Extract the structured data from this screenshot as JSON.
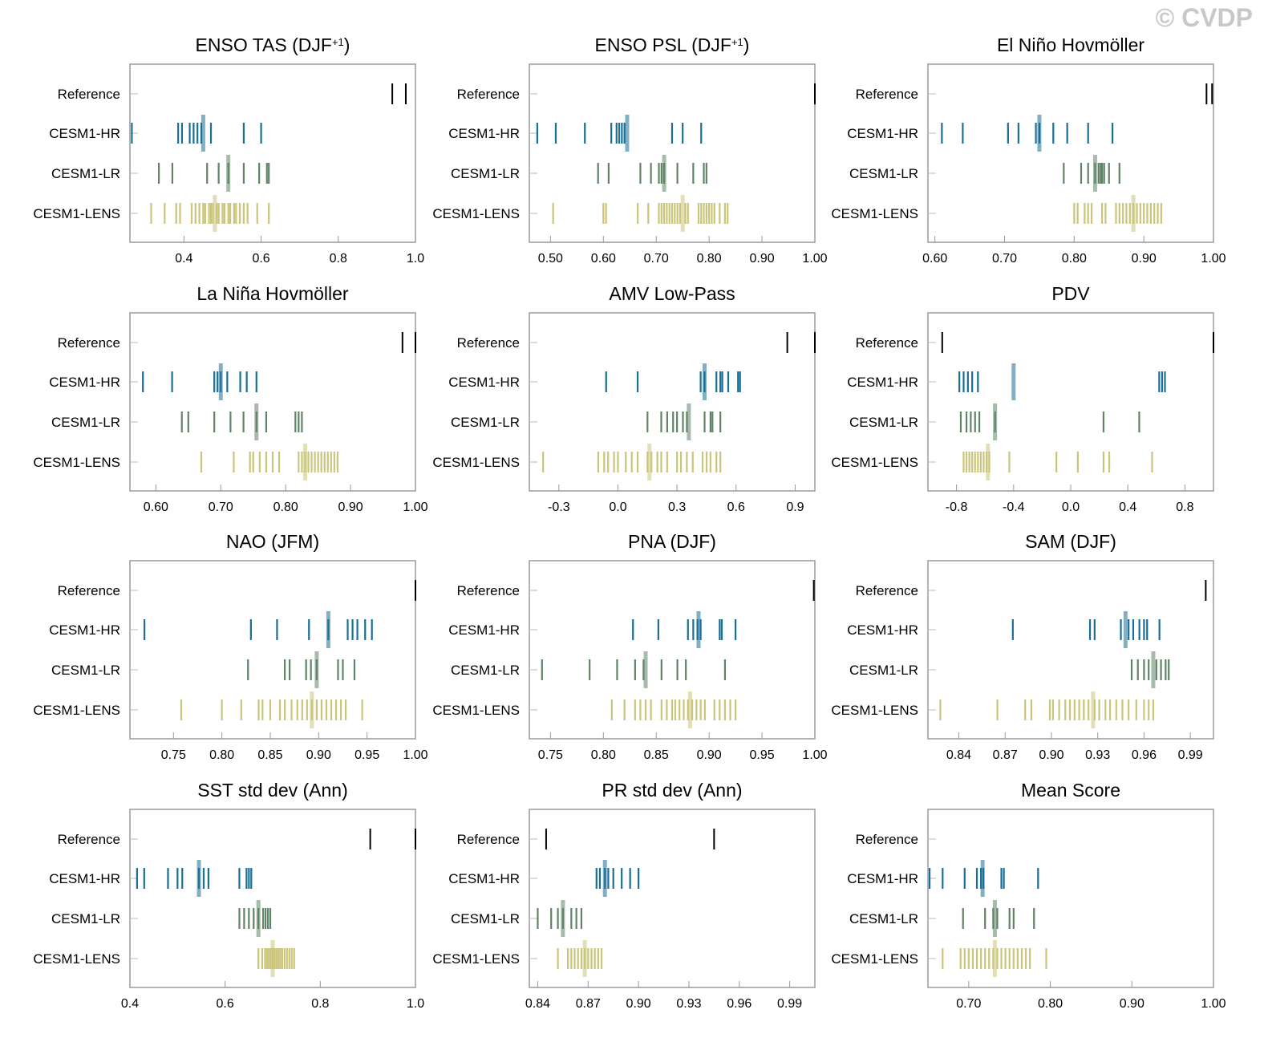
{
  "watermark": "© CVDP",
  "rows": [
    "Reference",
    "CESM1-HR",
    "CESM1-LR",
    "CESM1-LENS"
  ],
  "colors": {
    "Reference": "#000000",
    "CESM1-HR": "#1a6f96",
    "CESM1-LR": "#5f8466",
    "CESM1-LENS": "#cbc57a"
  },
  "chart_data": [
    {
      "type": "strip",
      "title": "ENSO TAS (DJF",
      "title_sup": "+1",
      "title_tail": ")",
      "xlim": [
        0.26,
        1.0
      ],
      "ticks": [
        0.4,
        0.6,
        0.8,
        1.0
      ],
      "tick_labels": [
        "0.4",
        "0.6",
        "0.8",
        "1.0"
      ],
      "series": [
        {
          "name": "Reference",
          "values": [
            0.94,
            0.975
          ],
          "mean": null
        },
        {
          "name": "CESM1-HR",
          "values": [
            0.265,
            0.385,
            0.395,
            0.415,
            0.425,
            0.435,
            0.445,
            0.47,
            0.555,
            0.6
          ],
          "mean": 0.45
        },
        {
          "name": "CESM1-LR",
          "values": [
            0.335,
            0.37,
            0.46,
            0.49,
            0.515,
            0.555,
            0.595,
            0.615,
            0.62
          ],
          "mean": 0.515
        },
        {
          "name": "CESM1-LENS",
          "values": [
            0.315,
            0.35,
            0.38,
            0.39,
            0.42,
            0.43,
            0.44,
            0.45,
            0.455,
            0.465,
            0.47,
            0.475,
            0.485,
            0.49,
            0.5,
            0.505,
            0.515,
            0.52,
            0.53,
            0.535,
            0.545,
            0.555,
            0.565,
            0.59,
            0.62
          ],
          "mean": 0.48
        }
      ]
    },
    {
      "type": "strip",
      "title": "ENSO PSL (DJF",
      "title_sup": "+1",
      "title_tail": ")",
      "xlim": [
        0.46,
        1.0
      ],
      "ticks": [
        0.5,
        0.6,
        0.7,
        0.8,
        0.9,
        1.0
      ],
      "tick_labels": [
        "0.50",
        "0.60",
        "0.70",
        "0.80",
        "0.90",
        "1.00"
      ],
      "series": [
        {
          "name": "Reference",
          "values": [
            1.0
          ],
          "mean": null
        },
        {
          "name": "CESM1-HR",
          "values": [
            0.475,
            0.51,
            0.565,
            0.615,
            0.625,
            0.63,
            0.635,
            0.64,
            0.73,
            0.75,
            0.785
          ],
          "mean": 0.645
        },
        {
          "name": "CESM1-LR",
          "values": [
            0.59,
            0.61,
            0.67,
            0.69,
            0.705,
            0.71,
            0.715,
            0.74,
            0.77,
            0.79,
            0.795
          ],
          "mean": 0.715
        },
        {
          "name": "CESM1-LENS",
          "values": [
            0.505,
            0.6,
            0.605,
            0.665,
            0.685,
            0.705,
            0.71,
            0.715,
            0.72,
            0.725,
            0.73,
            0.735,
            0.74,
            0.745,
            0.755,
            0.76,
            0.78,
            0.785,
            0.79,
            0.795,
            0.8,
            0.805,
            0.81,
            0.82,
            0.83,
            0.835
          ],
          "mean": 0.75
        }
      ]
    },
    {
      "type": "strip",
      "title": "El Niño Hovmöller",
      "title_sup": "",
      "title_tail": "",
      "xlim": [
        0.59,
        1.0
      ],
      "ticks": [
        0.6,
        0.7,
        0.8,
        0.9,
        1.0
      ],
      "tick_labels": [
        "0.60",
        "0.70",
        "0.80",
        "0.90",
        "1.00"
      ],
      "series": [
        {
          "name": "Reference",
          "values": [
            0.99,
            0.998
          ],
          "mean": null
        },
        {
          "name": "CESM1-HR",
          "values": [
            0.61,
            0.64,
            0.705,
            0.72,
            0.745,
            0.75,
            0.77,
            0.79,
            0.82,
            0.855
          ],
          "mean": 0.75
        },
        {
          "name": "CESM1-LR",
          "values": [
            0.785,
            0.81,
            0.82,
            0.83,
            0.835,
            0.838,
            0.84,
            0.843,
            0.85,
            0.865
          ],
          "mean": 0.83
        },
        {
          "name": "CESM1-LENS",
          "values": [
            0.8,
            0.805,
            0.815,
            0.82,
            0.825,
            0.84,
            0.845,
            0.86,
            0.865,
            0.87,
            0.875,
            0.88,
            0.885,
            0.89,
            0.895,
            0.9,
            0.905,
            0.91,
            0.915,
            0.92,
            0.925
          ],
          "mean": 0.885
        }
      ]
    },
    {
      "type": "strip",
      "title": "La Niña Hovmöller",
      "title_sup": "",
      "title_tail": "",
      "xlim": [
        0.56,
        1.0
      ],
      "ticks": [
        0.6,
        0.7,
        0.8,
        0.9,
        1.0
      ],
      "tick_labels": [
        "0.60",
        "0.70",
        "0.80",
        "0.90",
        "1.00"
      ],
      "series": [
        {
          "name": "Reference",
          "values": [
            0.98,
            1.0
          ],
          "mean": null
        },
        {
          "name": "CESM1-HR",
          "values": [
            0.58,
            0.625,
            0.69,
            0.695,
            0.7,
            0.71,
            0.73,
            0.74,
            0.755
          ],
          "mean": 0.7
        },
        {
          "name": "CESM1-LR",
          "values": [
            0.64,
            0.65,
            0.69,
            0.715,
            0.735,
            0.755,
            0.77,
            0.815,
            0.82,
            0.825
          ],
          "mean": 0.755
        },
        {
          "name": "CESM1-LENS",
          "values": [
            0.67,
            0.72,
            0.745,
            0.75,
            0.76,
            0.77,
            0.78,
            0.79,
            0.82,
            0.825,
            0.83,
            0.835,
            0.84,
            0.845,
            0.85,
            0.855,
            0.86,
            0.865,
            0.87,
            0.875,
            0.88
          ],
          "mean": 0.83
        }
      ]
    },
    {
      "type": "strip",
      "title": "AMV Low-Pass",
      "title_sup": "",
      "title_tail": "",
      "xlim": [
        -0.45,
        1.0
      ],
      "ticks": [
        -0.3,
        0.0,
        0.3,
        0.6,
        0.9
      ],
      "tick_labels": [
        "-0.3",
        "0.0",
        "0.3",
        "0.6",
        "0.9"
      ],
      "series": [
        {
          "name": "Reference",
          "values": [
            0.86,
            1.0
          ],
          "mean": null
        },
        {
          "name": "CESM1-HR",
          "values": [
            -0.06,
            0.1,
            0.42,
            0.44,
            0.5,
            0.52,
            0.53,
            0.56,
            0.61,
            0.62
          ],
          "mean": 0.44
        },
        {
          "name": "CESM1-LR",
          "values": [
            0.15,
            0.22,
            0.25,
            0.28,
            0.3,
            0.33,
            0.35,
            0.44,
            0.47,
            0.48,
            0.52
          ],
          "mean": 0.36
        },
        {
          "name": "CESM1-LENS",
          "values": [
            -0.38,
            -0.1,
            -0.07,
            -0.05,
            -0.02,
            0.0,
            0.04,
            0.07,
            0.1,
            0.15,
            0.17,
            0.2,
            0.22,
            0.25,
            0.3,
            0.32,
            0.35,
            0.38,
            0.43,
            0.45,
            0.47,
            0.5,
            0.52
          ],
          "mean": 0.16
        }
      ]
    },
    {
      "type": "strip",
      "title": "PDV",
      "title_sup": "",
      "title_tail": "",
      "xlim": [
        -1.0,
        1.0
      ],
      "ticks": [
        -0.8,
        -0.4,
        0.0,
        0.4,
        0.8
      ],
      "tick_labels": [
        "-0.8",
        "-0.4",
        "0.0",
        "0.4",
        "0.8"
      ],
      "series": [
        {
          "name": "Reference",
          "values": [
            -0.9,
            1.0
          ],
          "mean": null
        },
        {
          "name": "CESM1-HR",
          "values": [
            -0.78,
            -0.75,
            -0.72,
            -0.69,
            -0.65,
            0.62,
            0.64,
            0.66
          ],
          "mean": -0.4
        },
        {
          "name": "CESM1-LR",
          "values": [
            -0.77,
            -0.73,
            -0.7,
            -0.67,
            -0.64,
            -0.53,
            0.23,
            0.48
          ],
          "mean": -0.53
        },
        {
          "name": "CESM1-LENS",
          "values": [
            -0.75,
            -0.73,
            -0.71,
            -0.69,
            -0.67,
            -0.65,
            -0.63,
            -0.61,
            -0.59,
            -0.57,
            -0.43,
            -0.1,
            0.05,
            0.23,
            0.27,
            0.57
          ],
          "mean": -0.58
        }
      ]
    },
    {
      "type": "strip",
      "title": "NAO (JFM)",
      "title_sup": "",
      "title_tail": "",
      "xlim": [
        0.705,
        1.0
      ],
      "ticks": [
        0.75,
        0.8,
        0.85,
        0.9,
        0.95,
        1.0
      ],
      "tick_labels": [
        "0.75",
        "0.80",
        "0.85",
        "0.90",
        "0.95",
        "1.00"
      ],
      "series": [
        {
          "name": "Reference",
          "values": [
            1.0
          ],
          "mean": null
        },
        {
          "name": "CESM1-HR",
          "values": [
            0.72,
            0.83,
            0.857,
            0.89,
            0.91,
            0.93,
            0.935,
            0.94,
            0.948,
            0.955
          ],
          "mean": 0.91
        },
        {
          "name": "CESM1-LR",
          "values": [
            0.827,
            0.865,
            0.87,
            0.887,
            0.892,
            0.898,
            0.92,
            0.925,
            0.937
          ],
          "mean": 0.898
        },
        {
          "name": "CESM1-LENS",
          "values": [
            0.758,
            0.8,
            0.82,
            0.838,
            0.842,
            0.85,
            0.86,
            0.865,
            0.872,
            0.878,
            0.883,
            0.888,
            0.893,
            0.898,
            0.903,
            0.908,
            0.913,
            0.918,
            0.923,
            0.928,
            0.945
          ],
          "mean": 0.893
        }
      ]
    },
    {
      "type": "strip",
      "title": "PNA (DJF)",
      "title_sup": "",
      "title_tail": "",
      "xlim": [
        0.73,
        1.0
      ],
      "ticks": [
        0.75,
        0.8,
        0.85,
        0.9,
        0.95,
        1.0
      ],
      "tick_labels": [
        "0.75",
        "0.80",
        "0.85",
        "0.90",
        "0.95",
        "1.00"
      ],
      "series": [
        {
          "name": "Reference",
          "values": [
            0.999
          ],
          "mean": null
        },
        {
          "name": "CESM1-HR",
          "values": [
            0.828,
            0.852,
            0.88,
            0.885,
            0.889,
            0.892,
            0.91,
            0.912,
            0.925
          ],
          "mean": 0.89
        },
        {
          "name": "CESM1-LR",
          "values": [
            0.742,
            0.787,
            0.813,
            0.83,
            0.838,
            0.855,
            0.87,
            0.878,
            0.915
          ],
          "mean": 0.84
        },
        {
          "name": "CESM1-LENS",
          "values": [
            0.808,
            0.82,
            0.83,
            0.835,
            0.84,
            0.845,
            0.855,
            0.86,
            0.865,
            0.868,
            0.872,
            0.876,
            0.88,
            0.884,
            0.888,
            0.892,
            0.896,
            0.905,
            0.91,
            0.915,
            0.92,
            0.925
          ],
          "mean": 0.882
        }
      ]
    },
    {
      "type": "strip",
      "title": "SAM (DJF)",
      "title_sup": "",
      "title_tail": "",
      "xlim": [
        0.82,
        1.005
      ],
      "ticks": [
        0.84,
        0.87,
        0.9,
        0.93,
        0.96,
        0.99
      ],
      "tick_labels": [
        "0.84",
        "0.87",
        "0.90",
        "0.93",
        "0.96",
        "0.99"
      ],
      "series": [
        {
          "name": "Reference",
          "values": [
            1.0
          ],
          "mean": null
        },
        {
          "name": "CESM1-HR",
          "values": [
            0.875,
            0.925,
            0.928,
            0.945,
            0.95,
            0.953,
            0.957,
            0.96,
            0.962,
            0.97
          ],
          "mean": 0.948
        },
        {
          "name": "CESM1-LR",
          "values": [
            0.952,
            0.956,
            0.96,
            0.963,
            0.968,
            0.971,
            0.974,
            0.976
          ],
          "mean": 0.966
        },
        {
          "name": "CESM1-LENS",
          "values": [
            0.828,
            0.865,
            0.883,
            0.887,
            0.899,
            0.901,
            0.905,
            0.909,
            0.912,
            0.915,
            0.918,
            0.921,
            0.924,
            0.928,
            0.931,
            0.935,
            0.938,
            0.942,
            0.946,
            0.95,
            0.955,
            0.96,
            0.963,
            0.966
          ],
          "mean": 0.927
        }
      ]
    },
    {
      "type": "strip",
      "title": "SST std dev (Ann)",
      "title_sup": "",
      "title_tail": "",
      "xlim": [
        0.4,
        1.0
      ],
      "ticks": [
        0.4,
        0.6,
        0.8,
        1.0
      ],
      "tick_labels": [
        "0.4",
        "0.6",
        "0.8",
        "1.0"
      ],
      "series": [
        {
          "name": "Reference",
          "values": [
            0.905,
            1.0
          ],
          "mean": null
        },
        {
          "name": "CESM1-HR",
          "values": [
            0.415,
            0.43,
            0.48,
            0.5,
            0.51,
            0.545,
            0.555,
            0.565,
            0.63,
            0.645,
            0.65,
            0.655
          ],
          "mean": 0.545
        },
        {
          "name": "CESM1-LR",
          "values": [
            0.63,
            0.64,
            0.65,
            0.66,
            0.67,
            0.68,
            0.685,
            0.69,
            0.695
          ],
          "mean": 0.67
        },
        {
          "name": "CESM1-LENS",
          "values": [
            0.67,
            0.678,
            0.684,
            0.688,
            0.692,
            0.696,
            0.7,
            0.704,
            0.708,
            0.712,
            0.716,
            0.72,
            0.725,
            0.73,
            0.735,
            0.74,
            0.745
          ],
          "mean": 0.7
        }
      ]
    },
    {
      "type": "strip",
      "title": "PR std dev (Ann)",
      "title_sup": "",
      "title_tail": "",
      "xlim": [
        0.835,
        1.005
      ],
      "ticks": [
        0.84,
        0.87,
        0.9,
        0.93,
        0.96,
        0.99
      ],
      "tick_labels": [
        "0.84",
        "0.87",
        "0.90",
        "0.93",
        "0.96",
        "0.99"
      ],
      "series": [
        {
          "name": "Reference",
          "values": [
            0.845,
            0.945
          ],
          "mean": null
        },
        {
          "name": "CESM1-HR",
          "values": [
            0.875,
            0.877,
            0.88,
            0.882,
            0.885,
            0.89,
            0.895,
            0.9
          ],
          "mean": 0.88
        },
        {
          "name": "CESM1-LR",
          "values": [
            0.84,
            0.848,
            0.852,
            0.855,
            0.86,
            0.863,
            0.866
          ],
          "mean": 0.855
        },
        {
          "name": "CESM1-LENS",
          "values": [
            0.852,
            0.858,
            0.86,
            0.862,
            0.864,
            0.866,
            0.868,
            0.87,
            0.872,
            0.874,
            0.876,
            0.878
          ],
          "mean": 0.868
        }
      ]
    },
    {
      "type": "strip",
      "title": "Mean Score",
      "title_sup": "",
      "title_tail": "",
      "xlim": [
        0.65,
        1.0
      ],
      "ticks": [
        0.7,
        0.8,
        0.9,
        1.0
      ],
      "tick_labels": [
        "0.70",
        "0.80",
        "0.90",
        "1.00"
      ],
      "series": [
        {
          "name": "Reference",
          "values": [],
          "mean": null
        },
        {
          "name": "CESM1-HR",
          "values": [
            0.652,
            0.668,
            0.695,
            0.71,
            0.715,
            0.718,
            0.74,
            0.743,
            0.785
          ],
          "mean": 0.717
        },
        {
          "name": "CESM1-LR",
          "values": [
            0.693,
            0.72,
            0.73,
            0.735,
            0.75,
            0.755,
            0.78
          ],
          "mean": 0.732
        },
        {
          "name": "CESM1-LENS",
          "values": [
            0.668,
            0.69,
            0.695,
            0.7,
            0.705,
            0.71,
            0.715,
            0.72,
            0.725,
            0.73,
            0.735,
            0.74,
            0.745,
            0.75,
            0.755,
            0.76,
            0.765,
            0.77,
            0.775,
            0.795
          ],
          "mean": 0.732
        }
      ]
    }
  ]
}
